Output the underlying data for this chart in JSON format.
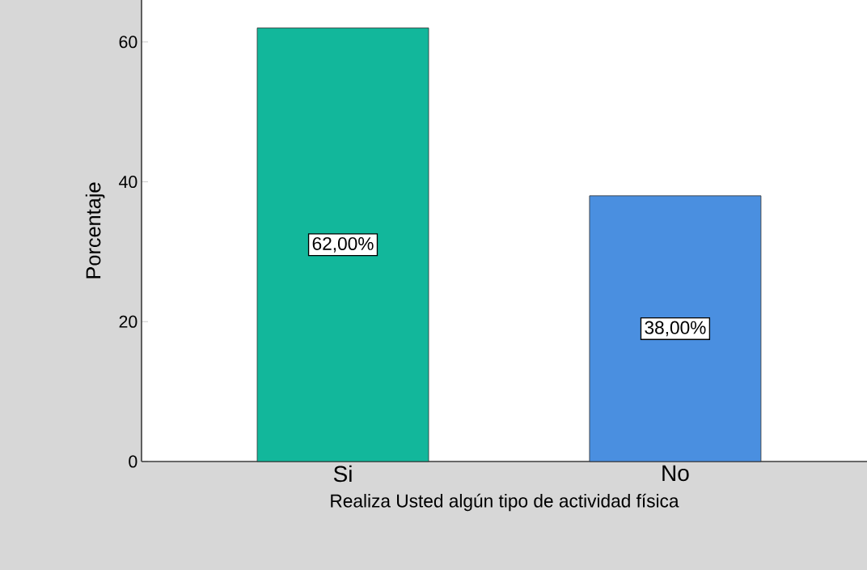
{
  "chart_data": {
    "type": "bar",
    "categories": [
      "Si",
      "No"
    ],
    "values": [
      62,
      38
    ],
    "colors": [
      "#12b79b",
      "#4a8fe0"
    ],
    "value_labels": [
      "62,00%",
      "38,00%"
    ],
    "xlabel": "Realiza Usted algún tipo de actividad física",
    "ylabel": "Porcentaje",
    "ylim": [
      0,
      66
    ],
    "yticks": [
      0,
      20,
      40,
      60
    ]
  }
}
